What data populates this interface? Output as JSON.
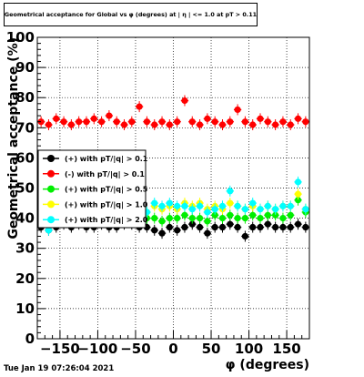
{
  "header": {
    "title": "Geometrical acceptance for Global vs φ (degrees) at | η | <= 1.0 at pT > 0.11"
  },
  "footer": {
    "date": "Tue Jan 19 07:26:04 2021"
  },
  "chart_data": {
    "type": "scatter",
    "xlabel": "φ (degrees)",
    "ylabel": "Geometrical acceptance (%)",
    "xlim": [
      -180,
      180
    ],
    "ylim": [
      0,
      100
    ],
    "xticks": [
      -150,
      -100,
      -50,
      0,
      50,
      100,
      150
    ],
    "yticks": [
      0,
      10,
      20,
      30,
      40,
      50,
      60,
      70,
      80,
      90,
      100
    ],
    "grid": true,
    "legend_position": "left-middle",
    "series": [
      {
        "name": "(+) with pT/|q| > 0.1",
        "color": "#000000",
        "x": [
          -175,
          -165,
          -155,
          -145,
          -135,
          -125,
          -115,
          -105,
          -95,
          -85,
          -75,
          -65,
          -55,
          -45,
          -35,
          -25,
          -15,
          -5,
          5,
          15,
          25,
          35,
          45,
          55,
          65,
          75,
          85,
          95,
          105,
          115,
          125,
          135,
          145,
          155,
          165,
          175
        ],
        "y": [
          37,
          36,
          37,
          38,
          37,
          38,
          37,
          37,
          38,
          37,
          37,
          38,
          38,
          37,
          37,
          36,
          35,
          37,
          36,
          37,
          38,
          37,
          35,
          37,
          37,
          38,
          37,
          34,
          37,
          37,
          38,
          37,
          37,
          37,
          38,
          37
        ]
      },
      {
        "name": "(-) with pT/|q| > 0.1",
        "color": "#ff0000",
        "x": [
          -175,
          -165,
          -155,
          -145,
          -135,
          -125,
          -115,
          -105,
          -95,
          -85,
          -75,
          -65,
          -55,
          -45,
          -35,
          -25,
          -15,
          -5,
          5,
          15,
          25,
          35,
          45,
          55,
          65,
          75,
          85,
          95,
          105,
          115,
          125,
          135,
          145,
          155,
          165,
          175
        ],
        "y": [
          72,
          71,
          73,
          72,
          71,
          72,
          72,
          73,
          72,
          74,
          72,
          71,
          72,
          77,
          72,
          71,
          72,
          71,
          72,
          79,
          72,
          71,
          73,
          72,
          71,
          72,
          76,
          72,
          71,
          73,
          72,
          71,
          72,
          71,
          73,
          72
        ]
      },
      {
        "name": "(+) with pT/|q| > 0.5",
        "color": "#00ee00",
        "x": [
          -175,
          -165,
          -155,
          -145,
          -135,
          -125,
          -115,
          -105,
          -95,
          -85,
          -75,
          -65,
          -55,
          -45,
          -35,
          -25,
          -15,
          -5,
          5,
          15,
          25,
          35,
          45,
          55,
          65,
          75,
          85,
          95,
          105,
          115,
          125,
          135,
          145,
          155,
          165,
          175
        ],
        "y": [
          40,
          39,
          40,
          40,
          39,
          40,
          40,
          41,
          40,
          40,
          39,
          40,
          40,
          41,
          40,
          40,
          39,
          40,
          40,
          41,
          40,
          40,
          39,
          41,
          40,
          41,
          40,
          40,
          41,
          40,
          41,
          41,
          40,
          41,
          46,
          42
        ]
      },
      {
        "name": "(+) with pT/|q| > 1.0",
        "color": "#ffff00",
        "x": [
          -175,
          -165,
          -155,
          -145,
          -135,
          -125,
          -115,
          -105,
          -95,
          -85,
          -75,
          -65,
          -55,
          -45,
          -35,
          -25,
          -15,
          -5,
          5,
          15,
          25,
          35,
          45,
          55,
          65,
          75,
          85,
          95,
          105,
          115,
          125,
          135,
          145,
          155,
          165,
          175
        ],
        "y": [
          42,
          41,
          42,
          42,
          41,
          42,
          42,
          43,
          42,
          42,
          41,
          42,
          42,
          43,
          42,
          44,
          43,
          44,
          43,
          45,
          44,
          45,
          43,
          44,
          43,
          45,
          44,
          43,
          44,
          43,
          44,
          43,
          44,
          44,
          48,
          43
        ]
      },
      {
        "name": "(+) with pT/|q| > 2.0",
        "color": "#00ffff",
        "x": [
          -175,
          -165,
          -155,
          -145,
          -135,
          -125,
          -115,
          -105,
          -95,
          -85,
          -75,
          -65,
          -55,
          -45,
          -35,
          -25,
          -15,
          -5,
          5,
          15,
          25,
          35,
          45,
          55,
          65,
          75,
          85,
          95,
          105,
          115,
          125,
          135,
          145,
          155,
          165,
          175
        ],
        "y": [
          41,
          36,
          42,
          42,
          41,
          42,
          42,
          43,
          42,
          42,
          41,
          42,
          42,
          43,
          42,
          45,
          44,
          45,
          44,
          44,
          43,
          44,
          42,
          43,
          44,
          49,
          44,
          43,
          45,
          43,
          44,
          43,
          44,
          44,
          52,
          43
        ]
      }
    ]
  }
}
